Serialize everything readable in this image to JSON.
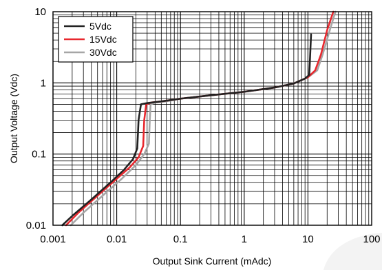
{
  "chart_data": {
    "type": "line",
    "xlabel": "Output Sink Current (mAdc)",
    "ylabel": "Output Voltage (Vdc)",
    "x_scale": "log",
    "y_scale": "log",
    "xlim": [
      0.001,
      100
    ],
    "ylim": [
      0.01,
      10
    ],
    "x_ticks": [
      {
        "value": 0.001,
        "label": "0.001"
      },
      {
        "value": 0.01,
        "label": "0.01"
      },
      {
        "value": 0.1,
        "label": "0.1"
      },
      {
        "value": 1,
        "label": "1"
      },
      {
        "value": 10,
        "label": "10"
      },
      {
        "value": 100,
        "label": "100"
      }
    ],
    "y_ticks": [
      {
        "value": 0.01,
        "label": "0.01"
      },
      {
        "value": 0.1,
        "label": "0.1"
      },
      {
        "value": 1,
        "label": "1"
      },
      {
        "value": 10,
        "label": "10"
      }
    ],
    "grid": true,
    "legend_position": "top-left",
    "series": [
      {
        "name": "5Vdc",
        "color": "#222222",
        "x": [
          0.0014,
          0.002,
          0.004,
          0.008,
          0.013,
          0.018,
          0.021,
          0.022,
          0.024,
          0.03,
          0.05,
          0.1,
          0.3,
          1,
          3,
          6,
          9,
          10.5,
          11.2
        ],
        "y": [
          0.01,
          0.0135,
          0.023,
          0.04,
          0.06,
          0.085,
          0.12,
          0.3,
          0.5,
          0.52,
          0.55,
          0.6,
          0.67,
          0.75,
          0.86,
          0.98,
          1.15,
          1.3,
          4.8
        ]
      },
      {
        "name": "15Vdc",
        "color": "#e8282e",
        "x": [
          0.0016,
          0.0025,
          0.005,
          0.01,
          0.016,
          0.022,
          0.026,
          0.027,
          0.029,
          0.035,
          0.05,
          0.1,
          0.3,
          1,
          3,
          6,
          10,
          13,
          16,
          20,
          25
        ],
        "y": [
          0.01,
          0.015,
          0.026,
          0.045,
          0.065,
          0.09,
          0.13,
          0.3,
          0.5,
          0.53,
          0.55,
          0.6,
          0.67,
          0.75,
          0.86,
          0.98,
          1.2,
          1.5,
          2.5,
          5.5,
          10
        ]
      },
      {
        "name": "30Vdc",
        "color": "#a6a6a6",
        "x": [
          0.0019,
          0.003,
          0.006,
          0.012,
          0.02,
          0.027,
          0.032,
          0.033,
          0.034,
          0.04,
          0.06,
          0.1,
          0.3,
          1,
          3,
          6,
          10,
          14,
          17,
          22,
          27
        ],
        "y": [
          0.01,
          0.015,
          0.026,
          0.045,
          0.07,
          0.1,
          0.14,
          0.3,
          0.5,
          0.53,
          0.55,
          0.6,
          0.67,
          0.75,
          0.86,
          0.98,
          1.2,
          1.5,
          2.5,
          5.5,
          10
        ]
      }
    ]
  }
}
